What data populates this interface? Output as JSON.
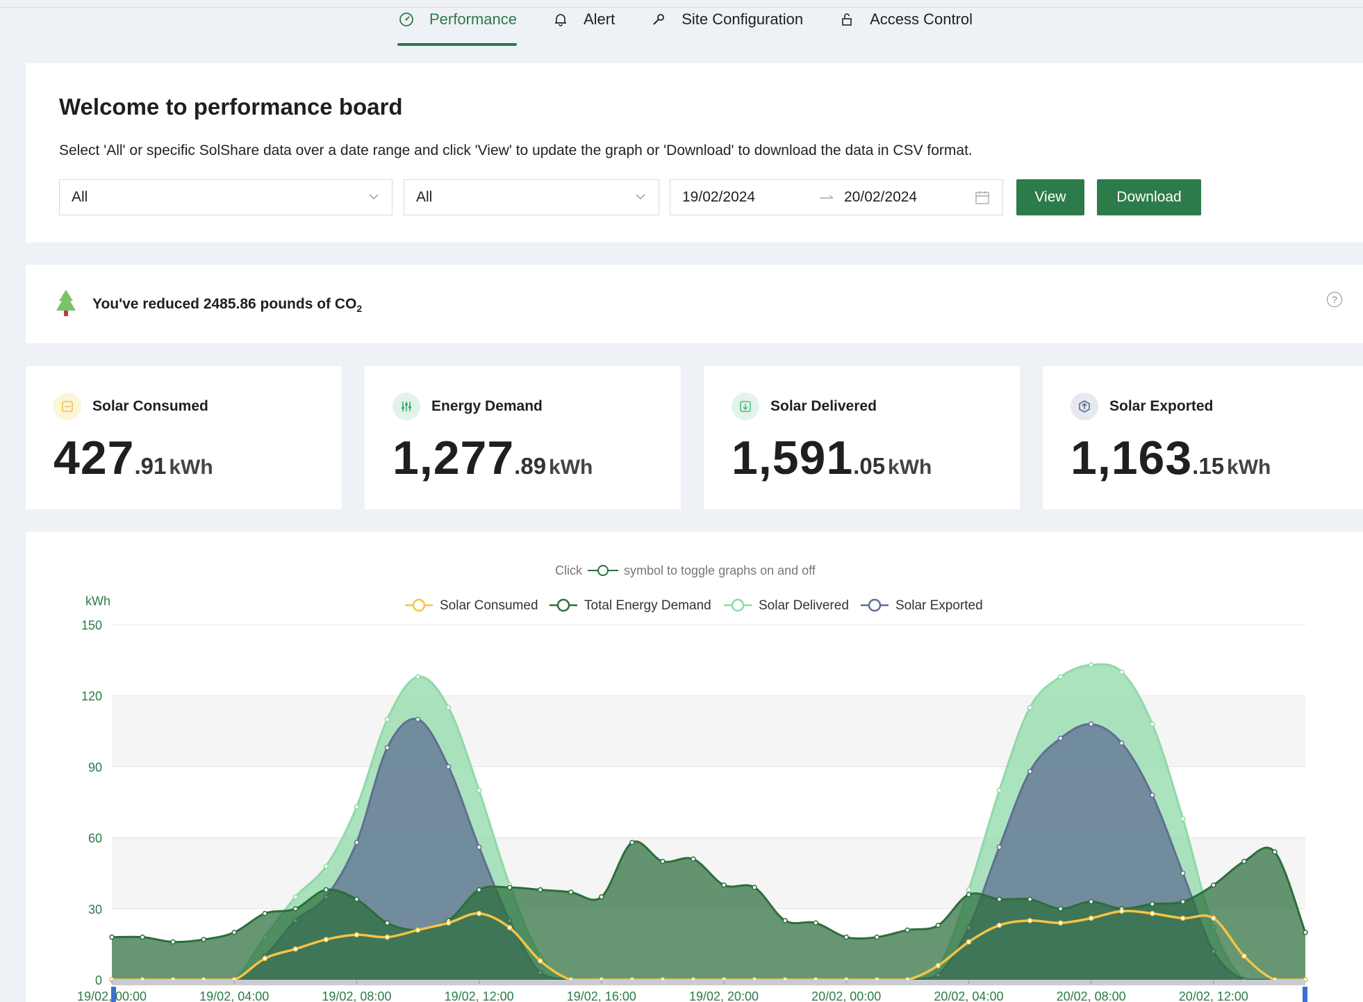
{
  "tabs": [
    {
      "label": "Performance",
      "icon": "gauge-icon",
      "active": true
    },
    {
      "label": "Alert",
      "icon": "bell-icon",
      "active": false
    },
    {
      "label": "Site Configuration",
      "icon": "wrench-icon",
      "active": false
    },
    {
      "label": "Access Control",
      "icon": "lock-icon",
      "active": false
    }
  ],
  "welcome": {
    "title": "Welcome to performance board",
    "description": "Select 'All' or specific SolShare data over a date range and click 'View' to update the graph or 'Download' to download the data in CSV format.",
    "filter1": "All",
    "filter2": "All",
    "date_start": "19/02/2024",
    "date_end": "20/02/2024",
    "view_label": "View",
    "download_label": "Download"
  },
  "co2": {
    "text": "You've reduced 2485.86 pounds of CO",
    "sub": "2",
    "icon": "tree-icon"
  },
  "stats": [
    {
      "label": "Solar Consumed",
      "int": "427",
      "dec": ".91",
      "unit": "kWh",
      "icon": "solar-consumed-icon",
      "color": "#f0c23a"
    },
    {
      "label": "Energy Demand",
      "int": "1,277",
      "dec": ".89",
      "unit": "kWh",
      "icon": "sliders-icon",
      "color": "#3aa86a"
    },
    {
      "label": "Solar Delivered",
      "int": "1,591",
      "dec": ".05",
      "unit": "kWh",
      "icon": "download-icon",
      "color": "#4cbf7a"
    },
    {
      "label": "Solar Exported",
      "int": "1,163",
      "dec": ".15",
      "unit": "kWh",
      "icon": "upload-icon",
      "color": "#5a6a8a"
    }
  ],
  "colors": {
    "brand": "#2d7a4a",
    "solar_consumed": "#f5c445",
    "total_demand": "#2b6e3c",
    "solar_delivered": "#8fd9a8",
    "solar_exported": "#5f6f92"
  },
  "chart_hint": {
    "prefix": "Click",
    "suffix": "symbol to toggle graphs on and off"
  },
  "chart_data": {
    "type": "area",
    "ylabel": "kWh",
    "ylim": [
      0,
      150
    ],
    "yticks": [
      0,
      30,
      60,
      90,
      120,
      150
    ],
    "grid": true,
    "legend_position": "top-center",
    "xticklabels": [
      "19/02, 00:00",
      "19/02, 04:00",
      "19/02, 08:00",
      "19/02, 12:00",
      "19/02, 16:00",
      "19/02, 20:00",
      "20/02, 00:00",
      "20/02, 04:00",
      "20/02, 08:00",
      "20/02, 12:00"
    ],
    "hours": [
      0,
      1,
      2,
      3,
      4,
      5,
      6,
      7,
      8,
      9,
      10,
      11,
      12,
      13,
      14,
      15,
      16,
      17,
      18,
      19,
      20,
      21,
      22,
      23,
      24,
      25,
      26,
      27,
      28,
      29,
      30,
      31,
      32,
      33,
      34,
      35,
      36,
      37,
      38,
      39
    ],
    "series": [
      {
        "name": "Solar Delivered",
        "values": [
          0,
          0,
          0,
          0,
          0,
          18,
          35,
          48,
          73,
          110,
          128,
          115,
          80,
          40,
          10,
          0,
          0,
          0,
          0,
          0,
          0,
          0,
          0,
          0,
          0,
          0,
          0,
          5,
          38,
          80,
          115,
          128,
          133,
          130,
          108,
          68,
          22,
          0,
          0,
          0
        ]
      },
      {
        "name": "Solar Exported",
        "values": [
          0,
          0,
          0,
          0,
          0,
          10,
          25,
          35,
          58,
          98,
          110,
          90,
          56,
          25,
          3,
          0,
          0,
          0,
          0,
          0,
          0,
          0,
          0,
          0,
          0,
          0,
          0,
          2,
          22,
          56,
          88,
          102,
          108,
          100,
          78,
          45,
          12,
          0,
          0,
          0
        ]
      },
      {
        "name": "Total Energy Demand",
        "values": [
          18,
          18,
          16,
          17,
          20,
          28,
          30,
          38,
          34,
          24,
          21,
          25,
          38,
          39,
          38,
          37,
          35,
          58,
          50,
          51,
          40,
          39,
          25,
          24,
          18,
          18,
          21,
          23,
          36,
          34,
          34,
          30,
          33,
          30,
          32,
          33,
          40,
          50,
          54,
          20
        ]
      },
      {
        "name": "Solar Consumed",
        "values": [
          0,
          0,
          0,
          0,
          0,
          9,
          13,
          17,
          19,
          18,
          21,
          24,
          28,
          22,
          8,
          0,
          0,
          0,
          0,
          0,
          0,
          0,
          0,
          0,
          0,
          0,
          0,
          6,
          16,
          23,
          25,
          24,
          26,
          29,
          28,
          26,
          26,
          10,
          0,
          0
        ]
      }
    ]
  }
}
